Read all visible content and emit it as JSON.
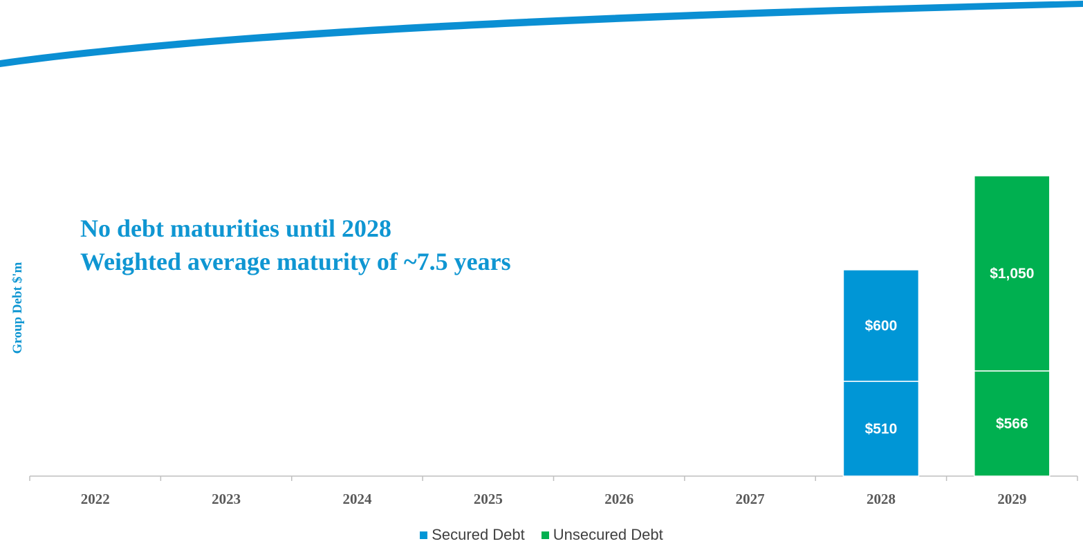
{
  "headline": {
    "line1": "No debt maturities until 2028",
    "line2": "Weighted average maturity of ~7.5 years"
  },
  "chart_data": {
    "type": "bar",
    "stacked": true,
    "categories": [
      "2022",
      "2023",
      "2024",
      "2025",
      "2026",
      "2027",
      "2028",
      "2029"
    ],
    "series": [
      {
        "name": "Secured Debt",
        "color": "#0096d6",
        "values": [
          0,
          0,
          0,
          0,
          0,
          0,
          510,
          0
        ],
        "labels": [
          "",
          "",
          "",
          "",
          "",
          "",
          "$510",
          ""
        ]
      },
      {
        "name": "Secured Debt",
        "color": "#0096d6",
        "values": [
          0,
          0,
          0,
          0,
          0,
          0,
          600,
          0
        ],
        "labels": [
          "",
          "",
          "",
          "",
          "",
          "",
          "$600",
          ""
        ]
      },
      {
        "name": "Unsecured Debt",
        "color": "#00b050",
        "values": [
          0,
          0,
          0,
          0,
          0,
          0,
          0,
          566
        ],
        "labels": [
          "",
          "",
          "",
          "",
          "",
          "",
          "",
          "$566"
        ]
      },
      {
        "name": "Unsecured Debt",
        "color": "#00b050",
        "values": [
          0,
          0,
          0,
          0,
          0,
          0,
          0,
          1050
        ],
        "labels": [
          "",
          "",
          "",
          "",
          "",
          "",
          "",
          "$1,050"
        ]
      }
    ],
    "ylabel": "Group Debt $'m",
    "ylim": [
      0,
      1616
    ],
    "grid": false,
    "legend": {
      "position": "bottom",
      "entries": [
        {
          "name": "Secured Debt",
          "color": "#0096d6"
        },
        {
          "name": "Unsecured Debt",
          "color": "#00b050"
        }
      ]
    }
  }
}
